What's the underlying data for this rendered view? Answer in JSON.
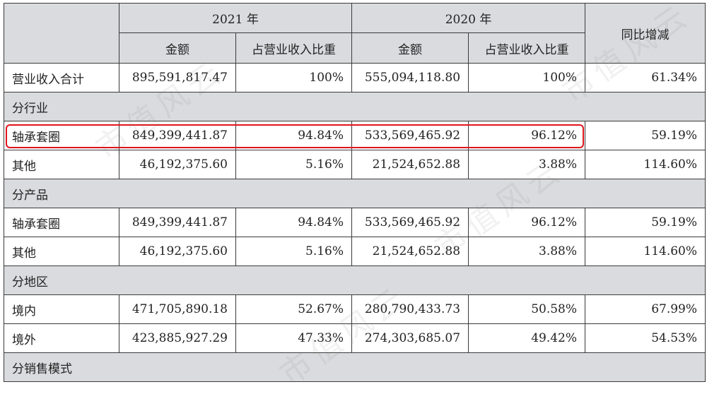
{
  "header": {
    "year_2021": "2021 年",
    "year_2020": "2020 年",
    "yoy": "同比增减",
    "amount": "金额",
    "share": "占营业收入比重"
  },
  "total": {
    "label": "营业收入合计",
    "amt2021": "895,591,817.47",
    "pct2021": "100%",
    "amt2020": "555,094,118.80",
    "pct2020": "100%",
    "yoy": "61.34%"
  },
  "sections": {
    "industry": "分行业",
    "product": "分产品",
    "region": "分地区",
    "sales_mode": "分销售模式"
  },
  "rows": {
    "ind_bearing": {
      "label": "轴承套圈",
      "amt2021": "849,399,441.87",
      "pct2021": "94.84%",
      "amt2020": "533,569,465.92",
      "pct2020": "96.12%",
      "yoy": "59.19%"
    },
    "ind_other": {
      "label": "其他",
      "amt2021": "46,192,375.60",
      "pct2021": "5.16%",
      "amt2020": "21,524,652.88",
      "pct2020": "3.88%",
      "yoy": "114.60%"
    },
    "prod_bearing": {
      "label": "轴承套圈",
      "amt2021": "849,399,441.87",
      "pct2021": "94.84%",
      "amt2020": "533,569,465.92",
      "pct2020": "96.12%",
      "yoy": "59.19%"
    },
    "prod_other": {
      "label": "其他",
      "amt2021": "46,192,375.60",
      "pct2021": "5.16%",
      "amt2020": "21,524,652.88",
      "pct2020": "3.88%",
      "yoy": "114.60%"
    },
    "domestic": {
      "label": "境内",
      "amt2021": "471,705,890.18",
      "pct2021": "52.67%",
      "amt2020": "280,790,433.73",
      "pct2020": "50.58%",
      "yoy": "67.99%"
    },
    "overseas": {
      "label": "境外",
      "amt2021": "423,885,927.29",
      "pct2021": "47.33%",
      "amt2020": "274,303,685.07",
      "pct2020": "49.42%",
      "yoy": "54.53%"
    }
  },
  "watermark": "市值风云",
  "colors": {
    "header_bg": "#d9dbde",
    "highlight_border": "#e0141b"
  }
}
